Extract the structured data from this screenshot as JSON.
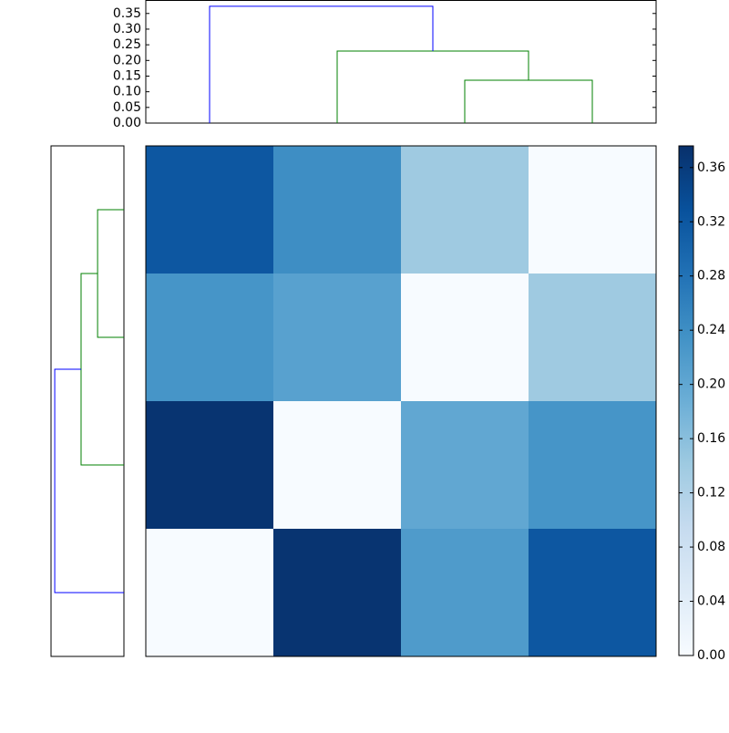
{
  "chart_data": {
    "type": "clustered-heatmap",
    "colormap": "Blues",
    "matrix": [
      [
        0.32,
        0.24,
        0.14,
        0
      ],
      [
        0.23,
        0.21,
        0,
        0.14
      ],
      [
        0.37,
        0,
        0.2,
        0.23
      ],
      [
        0,
        0.37,
        0.22,
        0.32
      ]
    ],
    "clim": [
      0,
      0.376
    ],
    "colorbar_ticks": [
      {
        "value": 0,
        "label": "0.00"
      },
      {
        "value": 0.04,
        "label": "0.04"
      },
      {
        "value": 0.08,
        "label": "0.08"
      },
      {
        "value": 0.12,
        "label": "0.12"
      },
      {
        "value": 0.16,
        "label": "0.16"
      },
      {
        "value": 0.2,
        "label": "0.20"
      },
      {
        "value": 0.24,
        "label": "0.24"
      },
      {
        "value": 0.28,
        "label": "0.28"
      },
      {
        "value": 0.32,
        "label": "0.32"
      },
      {
        "value": 0.36,
        "label": "0.36"
      }
    ],
    "top_dendrogram": {
      "ylim": [
        0,
        0.393
      ],
      "yticks": [
        {
          "value": 0,
          "label": "0.00"
        },
        {
          "value": 0.05,
          "label": "0.05"
        },
        {
          "value": 0.1,
          "label": "0.10"
        },
        {
          "value": 0.15,
          "label": "0.15"
        },
        {
          "value": 0.2,
          "label": "0.20"
        },
        {
          "value": 0.25,
          "label": "0.25"
        },
        {
          "value": 0.3,
          "label": "0.30"
        },
        {
          "value": 0.35,
          "label": "0.35"
        }
      ],
      "merges": [
        {
          "left": 2,
          "right": 3,
          "height": 0.137,
          "color": "#008000"
        },
        {
          "left": 1,
          "right": 4,
          "height": 0.23,
          "color": "#008000"
        },
        {
          "left": 0,
          "right": 5,
          "height": 0.373,
          "color": "#0000ff"
        }
      ]
    },
    "left_dendrogram": {
      "xlim": [
        0.393,
        0
      ],
      "merges": [
        {
          "left": 0,
          "right": 1,
          "height": 0.142,
          "color": "#008000"
        },
        {
          "left": 4,
          "right": 2,
          "height": 0.231,
          "color": "#008000"
        },
        {
          "left": 5,
          "right": 3,
          "height": 0.373,
          "color": "#0000ff"
        }
      ]
    }
  }
}
